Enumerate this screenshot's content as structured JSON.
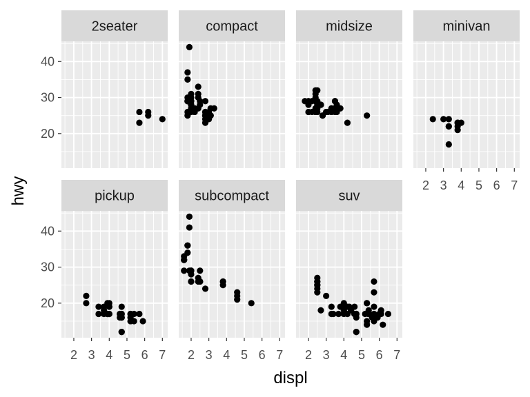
{
  "chart_data": {
    "type": "scatter",
    "facet_by": "class",
    "facet_layout": {
      "columns": 4,
      "rows": 2
    },
    "xlabel": "displ",
    "ylabel": "hwy",
    "xlim": [
      1.3,
      7.3
    ],
    "ylim": [
      10.4,
      45.6
    ],
    "x_ticks": [
      2,
      3,
      4,
      5,
      6,
      7
    ],
    "y_ticks": [
      20,
      30,
      40
    ],
    "grid": true,
    "point_color": "#000000",
    "panel_bg": "#ebebeb",
    "strip_bg": "#d9d9d9",
    "panels": [
      {
        "label": "2seater",
        "points": [
          [
            5.7,
            26
          ],
          [
            5.7,
            23
          ],
          [
            6.2,
            26
          ],
          [
            6.2,
            25
          ],
          [
            7.0,
            24
          ]
        ]
      },
      {
        "label": "compact",
        "points": [
          [
            1.8,
            29
          ],
          [
            1.8,
            29
          ],
          [
            2.0,
            31
          ],
          [
            2.0,
            30
          ],
          [
            2.8,
            26
          ],
          [
            2.8,
            26
          ],
          [
            3.1,
            27
          ],
          [
            1.8,
            26
          ],
          [
            1.8,
            25
          ],
          [
            2.0,
            28
          ],
          [
            2.0,
            27
          ],
          [
            2.8,
            25
          ],
          [
            2.8,
            25
          ],
          [
            3.1,
            25
          ],
          [
            3.1,
            25
          ],
          [
            2.2,
            26
          ],
          [
            2.2,
            27
          ],
          [
            2.4,
            30
          ],
          [
            2.4,
            33
          ],
          [
            3.0,
            26
          ],
          [
            3.3,
            27
          ],
          [
            1.9,
            44
          ],
          [
            2.0,
            29
          ],
          [
            2.5,
            29
          ],
          [
            2.5,
            28
          ],
          [
            2.8,
            23
          ],
          [
            1.8,
            29
          ],
          [
            1.8,
            30
          ],
          [
            2.0,
            28
          ],
          [
            2.0,
            26
          ],
          [
            2.8,
            24
          ],
          [
            1.8,
            37
          ],
          [
            1.8,
            35
          ],
          [
            2.0,
            28
          ],
          [
            2.0,
            29
          ],
          [
            2.8,
            29
          ],
          [
            2.8,
            25
          ],
          [
            2.4,
            27
          ],
          [
            2.4,
            31
          ],
          [
            3.0,
            24
          ]
        ]
      },
      {
        "label": "midsize",
        "points": [
          [
            2.4,
            27
          ],
          [
            2.4,
            30
          ],
          [
            3.1,
            26
          ],
          [
            3.5,
            29
          ],
          [
            3.6,
            26
          ],
          [
            2.4,
            29
          ],
          [
            3.0,
            26
          ],
          [
            3.3,
            26
          ],
          [
            3.3,
            26
          ],
          [
            3.3,
            27
          ],
          [
            3.8,
            27
          ],
          [
            2.4,
            31
          ],
          [
            2.4,
            32
          ],
          [
            2.5,
            29
          ],
          [
            2.5,
            32
          ],
          [
            3.5,
            27
          ],
          [
            5.3,
            25
          ],
          [
            2.4,
            26
          ],
          [
            2.4,
            26
          ],
          [
            2.8,
            25
          ],
          [
            3.5,
            29
          ],
          [
            4.2,
            23
          ],
          [
            2.2,
            26
          ],
          [
            2.2,
            29
          ],
          [
            2.7,
            28
          ],
          [
            2.7,
            28
          ],
          [
            3.5,
            26
          ],
          [
            3.5,
            27
          ],
          [
            1.8,
            29
          ],
          [
            2.0,
            28
          ],
          [
            2.0,
            29
          ],
          [
            2.8,
            25
          ],
          [
            3.6,
            28
          ],
          [
            2.5,
            26
          ],
          [
            2.5,
            28
          ],
          [
            3.0,
            26
          ],
          [
            3.3,
            27
          ],
          [
            2.4,
            29
          ],
          [
            2.0,
            26
          ],
          [
            2.5,
            27
          ]
        ]
      },
      {
        "label": "minivan",
        "points": [
          [
            2.4,
            24
          ],
          [
            3.0,
            24
          ],
          [
            3.3,
            22
          ],
          [
            3.3,
            22
          ],
          [
            3.3,
            24
          ],
          [
            3.3,
            17
          ],
          [
            3.8,
            22
          ],
          [
            3.8,
            21
          ],
          [
            3.8,
            23
          ],
          [
            4.0,
            23
          ],
          [
            3.8,
            23
          ]
        ]
      },
      {
        "label": "pickup",
        "points": [
          [
            2.7,
            20
          ],
          [
            2.7,
            22
          ],
          [
            3.4,
            17
          ],
          [
            3.4,
            19
          ],
          [
            3.7,
            18
          ],
          [
            3.7,
            17
          ],
          [
            3.9,
            17
          ],
          [
            3.9,
            17
          ],
          [
            4.7,
            17
          ],
          [
            4.7,
            16
          ],
          [
            4.7,
            12
          ],
          [
            5.2,
            17
          ],
          [
            5.2,
            17
          ],
          [
            5.7,
            17
          ],
          [
            5.9,
            15
          ],
          [
            4.7,
            16
          ],
          [
            4.7,
            12
          ],
          [
            4.7,
            17
          ],
          [
            5.2,
            15
          ],
          [
            5.2,
            16
          ],
          [
            3.9,
            20
          ],
          [
            4.6,
            17
          ],
          [
            4.6,
            17
          ],
          [
            5.4,
            17
          ],
          [
            5.4,
            15
          ],
          [
            4.0,
            20
          ],
          [
            4.0,
            17
          ],
          [
            4.0,
            19
          ],
          [
            4.0,
            19
          ],
          [
            4.6,
            16
          ],
          [
            4.7,
            19
          ],
          [
            3.7,
            19
          ],
          [
            4.0,
            17
          ]
        ]
      },
      {
        "label": "subcompact",
        "points": [
          [
            3.8,
            26
          ],
          [
            3.8,
            25
          ],
          [
            3.8,
            26
          ],
          [
            4.6,
            23
          ],
          [
            4.6,
            22
          ],
          [
            4.6,
            21
          ],
          [
            5.4,
            20
          ],
          [
            1.6,
            33
          ],
          [
            1.6,
            32
          ],
          [
            1.6,
            32
          ],
          [
            1.6,
            29
          ],
          [
            1.6,
            32
          ],
          [
            1.8,
            34
          ],
          [
            1.8,
            36
          ],
          [
            1.8,
            36
          ],
          [
            2.0,
            29
          ],
          [
            2.4,
            26
          ],
          [
            2.4,
            27
          ],
          [
            2.5,
            26
          ],
          [
            2.5,
            26
          ],
          [
            1.9,
            44
          ],
          [
            1.9,
            41
          ],
          [
            2.0,
            28
          ],
          [
            2.0,
            29
          ],
          [
            2.0,
            26
          ],
          [
            2.5,
            26
          ],
          [
            2.5,
            29
          ],
          [
            2.8,
            24
          ],
          [
            2.0,
            29
          ],
          [
            2.0,
            26
          ],
          [
            1.9,
            29
          ]
        ]
      },
      {
        "label": "suv",
        "points": [
          [
            5.3,
            20
          ],
          [
            5.3,
            15
          ],
          [
            5.3,
            20
          ],
          [
            5.7,
            17
          ],
          [
            6.0,
            17
          ],
          [
            5.7,
            26
          ],
          [
            5.7,
            23
          ],
          [
            6.5,
            17
          ],
          [
            2.5,
            26
          ],
          [
            2.5,
            24
          ],
          [
            3.3,
            17
          ],
          [
            3.3,
            19
          ],
          [
            3.8,
            19
          ],
          [
            4.7,
            17
          ],
          [
            4.7,
            17
          ],
          [
            5.7,
            15
          ],
          [
            6.1,
            17
          ],
          [
            4.0,
            19
          ],
          [
            4.0,
            19
          ],
          [
            4.2,
            17
          ],
          [
            4.6,
            19
          ],
          [
            4.6,
            17
          ],
          [
            5.4,
            18
          ],
          [
            4.0,
            17
          ],
          [
            4.0,
            19
          ],
          [
            4.6,
            17
          ],
          [
            4.6,
            17
          ],
          [
            4.7,
            12
          ],
          [
            5.2,
            17
          ],
          [
            5.9,
            16
          ],
          [
            4.7,
            12
          ],
          [
            5.7,
            17
          ],
          [
            6.1,
            18
          ],
          [
            5.4,
            17
          ],
          [
            5.4,
            17
          ],
          [
            5.6,
            16
          ],
          [
            4.2,
            19
          ],
          [
            5.3,
            14
          ],
          [
            3.0,
            22
          ],
          [
            3.7,
            17
          ],
          [
            4.0,
            20
          ],
          [
            4.7,
            17
          ],
          [
            5.7,
            19
          ],
          [
            6.2,
            14
          ],
          [
            2.5,
            27
          ],
          [
            2.5,
            26
          ],
          [
            2.5,
            25
          ],
          [
            2.5,
            25
          ],
          [
            2.5,
            23
          ],
          [
            4.4,
            18
          ],
          [
            2.7,
            18
          ],
          [
            3.4,
            17
          ],
          [
            4.0,
            18
          ],
          [
            4.7,
            16
          ],
          [
            4.3,
            19
          ]
        ]
      }
    ]
  }
}
